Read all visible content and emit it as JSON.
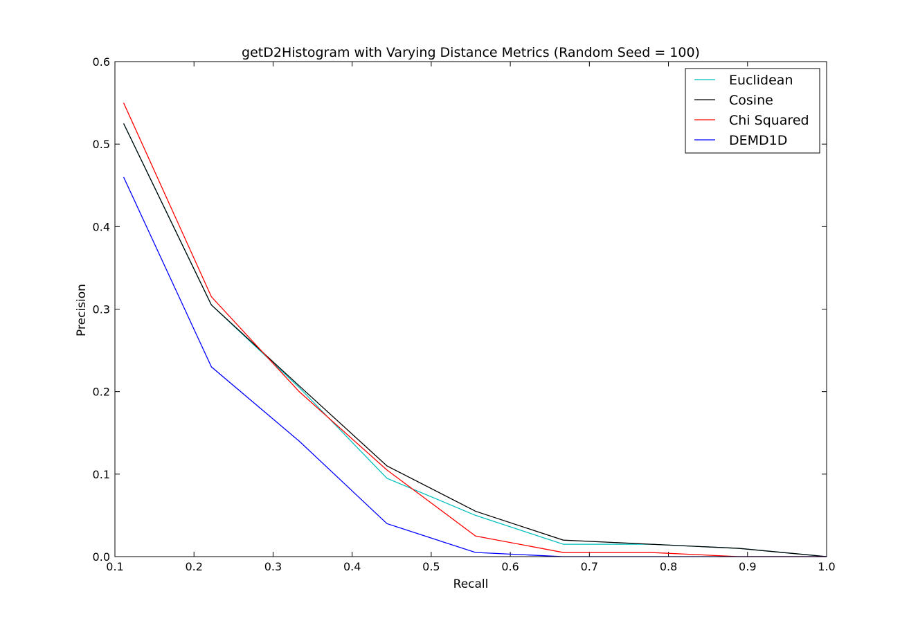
{
  "chart_data": {
    "type": "line",
    "title": "getD2Histogram with Varying Distance Metrics (Random Seed = 100)",
    "xlabel": "Recall",
    "ylabel": "Precision",
    "xlim": [
      0.1,
      1.0
    ],
    "ylim": [
      0.0,
      0.6
    ],
    "xticks": [
      "0.1",
      "0.2",
      "0.3",
      "0.4",
      "0.5",
      "0.6",
      "0.7",
      "0.8",
      "0.9",
      "1.0"
    ],
    "yticks": [
      "0.0",
      "0.1",
      "0.2",
      "0.3",
      "0.4",
      "0.5",
      "0.6"
    ],
    "grid": false,
    "legend_position": "top-right",
    "x": [
      0.111,
      0.222,
      0.333,
      0.444,
      0.556,
      0.667,
      0.778,
      0.889,
      1.0
    ],
    "series": [
      {
        "name": "Euclidean",
        "color": "#00bfbf",
        "values": [
          0.525,
          0.305,
          0.205,
          0.095,
          0.05,
          0.015,
          0.015,
          0.01,
          0.0
        ]
      },
      {
        "name": "Cosine",
        "color": "#000000",
        "values": [
          0.525,
          0.305,
          0.207,
          0.11,
          0.055,
          0.02,
          0.015,
          0.01,
          0.0
        ]
      },
      {
        "name": "Chi Squared",
        "color": "#ff0000",
        "values": [
          0.55,
          0.315,
          0.2,
          0.105,
          0.025,
          0.005,
          0.005,
          0.0,
          0.0
        ]
      },
      {
        "name": "DEMD1D",
        "color": "#0000ff",
        "values": [
          0.46,
          0.23,
          0.14,
          0.04,
          0.005,
          0.0,
          0.0,
          0.0,
          0.0
        ]
      }
    ]
  }
}
